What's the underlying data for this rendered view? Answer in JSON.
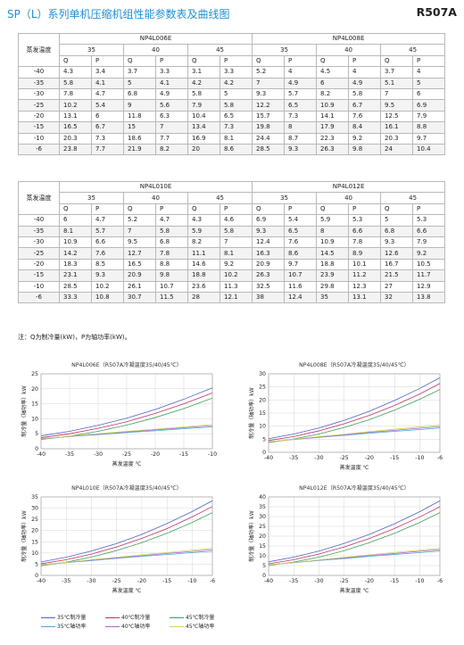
{
  "header": {
    "title": "SP（L）系列单机压缩机组性能参数表及曲线图",
    "refrigerant": "R507A"
  },
  "tables": [
    {
      "evap_label": "蒸发温度",
      "models": [
        "NP4L006E",
        "NP4L008E"
      ],
      "cond_temps": [
        "35",
        "40",
        "45"
      ],
      "q_label": "Q",
      "p_label": "P",
      "rows": [
        {
          "t": "-40",
          "v": [
            "4.3",
            "3.4",
            "3.7",
            "3.3",
            "3.1",
            "3.3",
            "5.2",
            "4",
            "4.5",
            "4",
            "3.7",
            "4"
          ]
        },
        {
          "t": "-35",
          "v": [
            "5.8",
            "4.1",
            "5",
            "4.1",
            "4.2",
            "4.2",
            "7",
            "4.9",
            "6",
            "4.9",
            "5.1",
            "5"
          ]
        },
        {
          "t": "-30",
          "v": [
            "7.8",
            "4.7",
            "6.8",
            "4.9",
            "5.8",
            "5",
            "9.3",
            "5.7",
            "8.2",
            "5.8",
            "7",
            "6"
          ]
        },
        {
          "t": "-25",
          "v": [
            "10.2",
            "5.4",
            "9",
            "5.6",
            "7.9",
            "5.8",
            "12.2",
            "6.5",
            "10.9",
            "6.7",
            "9.5",
            "6.9"
          ]
        },
        {
          "t": "-20",
          "v": [
            "13.1",
            "6",
            "11.8",
            "6.3",
            "10.4",
            "6.5",
            "15.7",
            "7.3",
            "14.1",
            "7.6",
            "12.5",
            "7.9"
          ]
        },
        {
          "t": "-15",
          "v": [
            "16.5",
            "6.7",
            "15",
            "7",
            "13.4",
            "7.3",
            "19.8",
            "8",
            "17.9",
            "8.4",
            "16.1",
            "8.8"
          ]
        },
        {
          "t": "-10",
          "v": [
            "20.3",
            "7.3",
            "18.6",
            "7.7",
            "16.9",
            "8.1",
            "24.4",
            "8.7",
            "22.3",
            "9.2",
            "20.3",
            "9.7"
          ]
        },
        {
          "t": "-6",
          "v": [
            "23.8",
            "7.7",
            "21.9",
            "8.2",
            "20",
            "8.6",
            "28.5",
            "9.3",
            "26.3",
            "9.8",
            "24",
            "10.4"
          ]
        }
      ]
    },
    {
      "evap_label": "蒸发温度",
      "models": [
        "NP4L010E",
        "NP4L012E"
      ],
      "cond_temps": [
        "35",
        "40",
        "45"
      ],
      "q_label": "Q",
      "p_label": "P",
      "rows": [
        {
          "t": "-40",
          "v": [
            "6",
            "4.7",
            "5.2",
            "4.7",
            "4.3",
            "4.6",
            "6.9",
            "5.4",
            "5.9",
            "5.3",
            "5",
            "5.3"
          ]
        },
        {
          "t": "-35",
          "v": [
            "8.1",
            "5.7",
            "7",
            "5.8",
            "5.9",
            "5.8",
            "9.3",
            "6.5",
            "8",
            "6.6",
            "6.8",
            "6.6"
          ]
        },
        {
          "t": "-30",
          "v": [
            "10.9",
            "6.6",
            "9.5",
            "6.8",
            "8.2",
            "7",
            "12.4",
            "7.6",
            "10.9",
            "7.8",
            "9.3",
            "7.9"
          ]
        },
        {
          "t": "-25",
          "v": [
            "14.2",
            "7.6",
            "12.7",
            "7.8",
            "11.1",
            "8.1",
            "16.3",
            "8.6",
            "14.5",
            "8.9",
            "12.6",
            "9.2"
          ]
        },
        {
          "t": "-20",
          "v": [
            "18.3",
            "8.5",
            "16.5",
            "8.8",
            "14.6",
            "9.2",
            "20.9",
            "9.7",
            "18.8",
            "10.1",
            "16.7",
            "10.5"
          ]
        },
        {
          "t": "-15",
          "v": [
            "23.1",
            "9.3",
            "20.9",
            "9.8",
            "18.8",
            "10.2",
            "26.3",
            "10.7",
            "23.9",
            "11.2",
            "21.5",
            "11.7"
          ]
        },
        {
          "t": "-10",
          "v": [
            "28.5",
            "10.2",
            "26.1",
            "10.7",
            "23.6",
            "11.3",
            "32.5",
            "11.6",
            "29.8",
            "12.3",
            "27",
            "12.9"
          ]
        },
        {
          "t": "-6",
          "v": [
            "33.3",
            "10.8",
            "30.7",
            "11.5",
            "28",
            "12.1",
            "38",
            "12.4",
            "35",
            "13.1",
            "32",
            "13.8"
          ]
        }
      ]
    }
  ],
  "note": "注：Q为制冷量(kW)，P为轴功率(kW)。",
  "chart_data": [
    {
      "type": "line",
      "title": "NP4L006E（R507A冷凝温度35/40/45℃）",
      "xlabel": "蒸发温度 ℃",
      "ylabel": "制冷量（轴功率）kW",
      "x": [
        -40,
        -35,
        -30,
        -25,
        -20,
        -15,
        -10
      ],
      "xticks": [
        -40,
        -35,
        -30,
        -25,
        -20,
        -15,
        -10
      ],
      "xlim": [
        -40,
        -10
      ],
      "ylim": [
        0,
        25
      ],
      "yticks": [
        0,
        5,
        10,
        15,
        20,
        25
      ],
      "grid": true,
      "series": [
        {
          "name": "35℃制冷量",
          "values": [
            4.3,
            5.8,
            7.8,
            10.2,
            13.1,
            16.5,
            20.3
          ]
        },
        {
          "name": "40℃制冷量",
          "values": [
            3.7,
            5,
            6.8,
            9,
            11.8,
            15,
            18.6
          ]
        },
        {
          "name": "45℃制冷量",
          "values": [
            3.1,
            4.2,
            5.8,
            7.9,
            10.4,
            13.4,
            16.9
          ]
        },
        {
          "name": "35℃轴功率",
          "values": [
            3.4,
            4.1,
            4.7,
            5.4,
            6,
            6.7,
            7.3
          ]
        },
        {
          "name": "40℃轴功率",
          "values": [
            3.3,
            4.1,
            4.9,
            5.6,
            6.3,
            7,
            7.7
          ]
        },
        {
          "name": "45℃轴功率",
          "values": [
            3.3,
            4.2,
            5,
            5.8,
            6.5,
            7.3,
            8.1
          ]
        }
      ]
    },
    {
      "type": "line",
      "title": "NP4L008E（R507A冷凝温度35/40/45℃）",
      "xlabel": "蒸发温度 ℃",
      "ylabel": "制冷量（轴功率）kW",
      "x": [
        -40,
        -35,
        -30,
        -25,
        -20,
        -15,
        -10,
        -6
      ],
      "xticks": [
        -40,
        -35,
        -30,
        -25,
        -20,
        -15,
        -10,
        -6
      ],
      "xlim": [
        -40,
        -6
      ],
      "ylim": [
        0,
        30
      ],
      "yticks": [
        0,
        5,
        10,
        15,
        20,
        25,
        30
      ],
      "grid": true,
      "series": [
        {
          "name": "35℃制冷量",
          "values": [
            5.2,
            7,
            9.3,
            12.2,
            15.7,
            19.8,
            24.4,
            28.5
          ]
        },
        {
          "name": "40℃制冷量",
          "values": [
            4.5,
            6,
            8.2,
            10.9,
            14.1,
            17.9,
            22.3,
            26.3
          ]
        },
        {
          "name": "45℃制冷量",
          "values": [
            3.7,
            5.1,
            7,
            9.5,
            12.5,
            16.1,
            20.3,
            24
          ]
        },
        {
          "name": "35℃轴功率",
          "values": [
            4,
            4.9,
            5.7,
            6.5,
            7.3,
            8,
            8.7,
            9.3
          ]
        },
        {
          "name": "40℃轴功率",
          "values": [
            4,
            4.9,
            5.8,
            6.7,
            7.6,
            8.4,
            9.2,
            9.8
          ]
        },
        {
          "name": "45℃轴功率",
          "values": [
            4,
            5,
            6,
            6.9,
            7.9,
            8.8,
            9.7,
            10.4
          ]
        }
      ]
    },
    {
      "type": "line",
      "title": "NP4L010E（R507A冷凝温度35/40/45℃）",
      "xlabel": "蒸发温度 ℃",
      "ylabel": "制冷量（轴功率）kW",
      "x": [
        -40,
        -35,
        -30,
        -25,
        -20,
        -15,
        -10,
        -6
      ],
      "xticks": [
        -40,
        -35,
        -30,
        -25,
        -20,
        -15,
        -10,
        -6
      ],
      "xlim": [
        -40,
        -6
      ],
      "ylim": [
        0,
        35
      ],
      "yticks": [
        0,
        5,
        10,
        15,
        20,
        25,
        30,
        35
      ],
      "grid": true,
      "series": [
        {
          "name": "35℃制冷量",
          "values": [
            6,
            8.1,
            10.9,
            14.2,
            18.3,
            23.1,
            28.5,
            33.3
          ]
        },
        {
          "name": "40℃制冷量",
          "values": [
            5.2,
            7,
            9.5,
            12.7,
            16.5,
            20.9,
            26.1,
            30.7
          ]
        },
        {
          "name": "45℃制冷量",
          "values": [
            4.3,
            5.9,
            8.2,
            11.1,
            14.6,
            18.8,
            23.6,
            28
          ]
        },
        {
          "name": "35℃轴功率",
          "values": [
            4.7,
            5.7,
            6.6,
            7.6,
            8.5,
            9.3,
            10.2,
            10.8
          ]
        },
        {
          "name": "40℃轴功率",
          "values": [
            4.7,
            5.8,
            6.8,
            7.8,
            8.8,
            9.8,
            10.7,
            11.5
          ]
        },
        {
          "name": "45℃轴功率",
          "values": [
            4.6,
            5.8,
            7,
            8.1,
            9.2,
            10.2,
            11.3,
            12.1
          ]
        }
      ]
    },
    {
      "type": "line",
      "title": "NP4L012E（R507A冷凝温度35/40/45℃）",
      "xlabel": "蒸发温度 ℃",
      "ylabel": "制冷量（轴功率）kW",
      "x": [
        -40,
        -35,
        -30,
        -25,
        -20,
        -15,
        -10,
        -6
      ],
      "xticks": [
        -40,
        -35,
        -30,
        -25,
        -20,
        -15,
        -10,
        -6
      ],
      "xlim": [
        -40,
        -6
      ],
      "ylim": [
        0,
        40
      ],
      "yticks": [
        0,
        5,
        10,
        15,
        20,
        25,
        30,
        35,
        40
      ],
      "grid": true,
      "series": [
        {
          "name": "35℃制冷量",
          "values": [
            6.9,
            9.3,
            12.4,
            16.3,
            20.9,
            26.3,
            32.5,
            38
          ]
        },
        {
          "name": "40℃制冷量",
          "values": [
            5.9,
            8,
            10.9,
            14.5,
            18.8,
            23.9,
            29.8,
            35
          ]
        },
        {
          "name": "45℃制冷量",
          "values": [
            5,
            6.8,
            9.3,
            12.6,
            16.7,
            21.5,
            27,
            32
          ]
        },
        {
          "name": "35℃轴功率",
          "values": [
            5.4,
            6.5,
            7.6,
            8.6,
            9.7,
            10.7,
            11.6,
            12.4
          ]
        },
        {
          "name": "40℃轴功率",
          "values": [
            5.3,
            6.6,
            7.8,
            8.9,
            10.1,
            11.2,
            12.3,
            13.1
          ]
        },
        {
          "name": "45℃轴功率",
          "values": [
            5.3,
            6.6,
            7.9,
            9.2,
            10.5,
            11.7,
            12.9,
            13.8
          ]
        }
      ]
    }
  ],
  "series_colors": [
    "#4b63c9",
    "#c33060",
    "#3f9f5a",
    "#48a9e0",
    "#a16cc9",
    "#d4d255"
  ],
  "legend": {
    "items": [
      "35℃制冷量",
      "40℃制冷量",
      "45℃制冷量",
      "35℃轴功率",
      "40℃轴功率",
      "45℃轴功率"
    ]
  }
}
